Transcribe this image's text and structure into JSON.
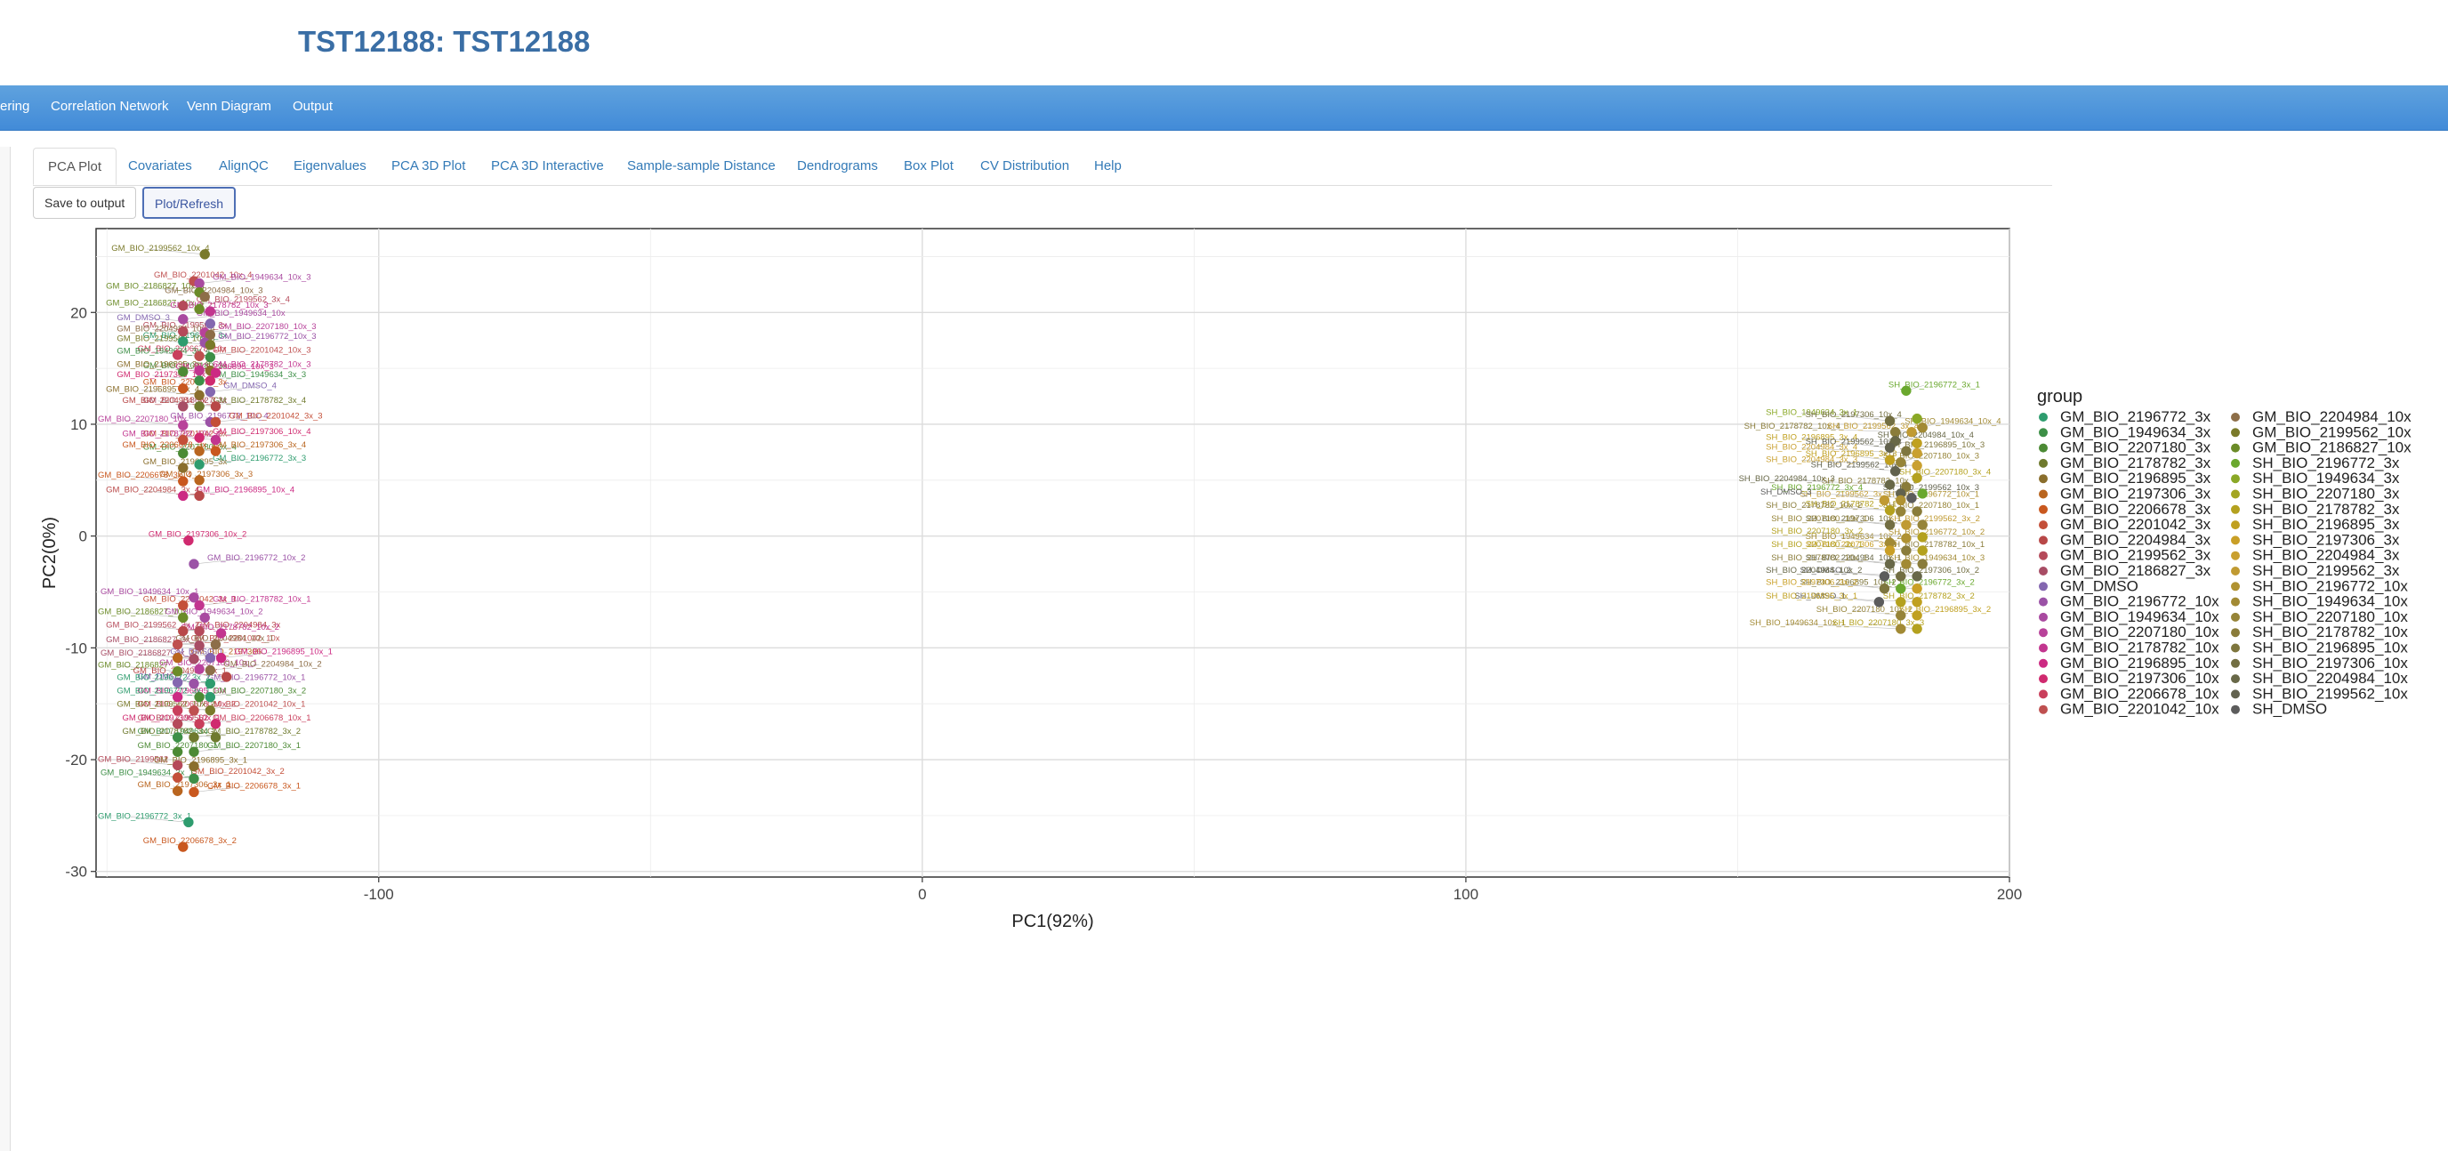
{
  "app": {
    "title": "TST12188: TST12188"
  },
  "nav": {
    "items": [
      "ering",
      "Correlation Network",
      "Venn Diagram",
      "Output"
    ]
  },
  "tabs": [
    "PCA Plot",
    "Covariates",
    "AlignQC",
    "Eigenvalues",
    "PCA 3D Plot",
    "PCA 3D Interactive",
    "Sample-sample Distance",
    "Dendrograms",
    "Box Plot",
    "CV Distribution",
    "Help"
  ],
  "buttons": {
    "save": "Save to output",
    "plot": "Plot/Refresh"
  },
  "chart_data": {
    "type": "scatter",
    "xlabel": "PC1(92%)",
    "ylabel": "PC2(0%)",
    "xlim": [
      -152,
      200
    ],
    "ylim": [
      -30.5,
      27.5
    ],
    "xticks": [
      -100,
      0,
      100,
      200
    ],
    "yticks": [
      -30,
      -20,
      -10,
      0,
      10,
      20
    ],
    "grid": true,
    "legend": {
      "title": "group",
      "placement": "right"
    },
    "groups": [
      {
        "name": "GM_BIO_2196772_3x",
        "color": "#2e9c6e"
      },
      {
        "name": "GM_BIO_1949634_3x",
        "color": "#3d8f47"
      },
      {
        "name": "GM_BIO_2207180_3x",
        "color": "#4c8a35"
      },
      {
        "name": "GM_BIO_2178782_3x",
        "color": "#6f7a2e"
      },
      {
        "name": "GM_BIO_2196895_3x",
        "color": "#8a6e2c"
      },
      {
        "name": "GM_BIO_2197306_3x",
        "color": "#b9651f"
      },
      {
        "name": "GM_BIO_2206678_3x",
        "color": "#c9581f"
      },
      {
        "name": "GM_BIO_2201042_3x",
        "color": "#c44f39"
      },
      {
        "name": "GM_BIO_2204984_3x",
        "color": "#b84848"
      },
      {
        "name": "GM_BIO_2199562_3x",
        "color": "#b54a5a"
      },
      {
        "name": "GM_BIO_2186827_3x",
        "color": "#a84d65"
      },
      {
        "name": "GM_DMSO",
        "color": "#8467b0"
      },
      {
        "name": "GM_BIO_2196772_10x",
        "color": "#9b52a6"
      },
      {
        "name": "GM_BIO_1949634_10x",
        "color": "#a94aa0"
      },
      {
        "name": "GM_BIO_2207180_10x",
        "color": "#b8429a"
      },
      {
        "name": "GM_BIO_2178782_10x",
        "color": "#c2368f"
      },
      {
        "name": "GM_BIO_2196895_10x",
        "color": "#cc2a83"
      },
      {
        "name": "GM_BIO_2197306_10x",
        "color": "#d02a6f"
      },
      {
        "name": "GM_BIO_2206678_10x",
        "color": "#c93f5c"
      },
      {
        "name": "GM_BIO_2201042_10x",
        "color": "#bf5050"
      },
      {
        "name": "GM_BIO_2204984_10x",
        "color": "#8d6e48"
      },
      {
        "name": "GM_BIO_2199562_10x",
        "color": "#7a7a2a"
      },
      {
        "name": "GM_BIO_2186827_10x",
        "color": "#6b8b28"
      },
      {
        "name": "SH_BIO_2196772_3x",
        "color": "#6aa82e"
      },
      {
        "name": "SH_BIO_1949634_3x",
        "color": "#8aa826"
      },
      {
        "name": "SH_BIO_2207180_3x",
        "color": "#a3a522"
      },
      {
        "name": "SH_BIO_2178782_3x",
        "color": "#b4a11f"
      },
      {
        "name": "SH_BIO_2196895_3x",
        "color": "#c0a020"
      },
      {
        "name": "SH_BIO_2197306_3x",
        "color": "#c99f26"
      },
      {
        "name": "SH_BIO_2204984_3x",
        "color": "#c9a030"
      },
      {
        "name": "SH_BIO_2199562_3x",
        "color": "#c09a32"
      },
      {
        "name": "SH_BIO_2196772_10x",
        "color": "#b09232"
      },
      {
        "name": "SH_BIO_1949634_10x",
        "color": "#a28a34"
      },
      {
        "name": "SH_BIO_2207180_10x",
        "color": "#968438"
      },
      {
        "name": "SH_BIO_2178782_10x",
        "color": "#8a7c3a"
      },
      {
        "name": "SH_BIO_2196895_10x",
        "color": "#7e763e"
      },
      {
        "name": "SH_BIO_2197306_10x",
        "color": "#726e42"
      },
      {
        "name": "SH_BIO_2204984_10x",
        "color": "#686848"
      },
      {
        "name": "SH_BIO_2199562_10x",
        "color": "#62624e"
      },
      {
        "name": "SH_DMSO",
        "color": "#5c5c5c"
      }
    ],
    "points": [
      {
        "label": "GM_BIO_2199562_10x_4",
        "x": -132,
        "y": 25.2,
        "g": 21
      },
      {
        "label": "GM_BIO_2201042_10x_4",
        "x": -134,
        "y": 22.8,
        "g": 19
      },
      {
        "label": "GM_BIO_1949634_10x_3",
        "x": -133,
        "y": 22.6,
        "g": 13
      },
      {
        "label": "GM_BIO_2186827_10x_3",
        "x": -133,
        "y": 21.8,
        "g": 22
      },
      {
        "label": "GM_BIO_2204984_10x_3",
        "x": -132,
        "y": 21.4,
        "g": 20
      },
      {
        "label": "GM_BIO_2199562_3x_4",
        "x": -136,
        "y": 20.6,
        "g": 9
      },
      {
        "label": "GM_BIO_2186827_10x_4",
        "x": -133,
        "y": 20.3,
        "g": 22
      },
      {
        "label": "GM_BIO_2178782_10x_3",
        "x": -131,
        "y": 20.1,
        "g": 15
      },
      {
        "label": "GM_BIO_1949634_10x",
        "x": -136,
        "y": 19.4,
        "g": 13
      },
      {
        "label": "GM_DMSO_3",
        "x": -131,
        "y": 19.0,
        "g": 11
      },
      {
        "label": "GM_BIO_2199562_3x",
        "x": -136,
        "y": 18.3,
        "g": 9
      },
      {
        "label": "GM_BIO_2207180_10x_3",
        "x": -132,
        "y": 18.2,
        "g": 14
      },
      {
        "label": "GM_BIO_2204984_10x_4",
        "x": -131,
        "y": 18.0,
        "g": 20
      },
      {
        "label": "GM_BIO_2196772_3x",
        "x": -136,
        "y": 17.4,
        "g": 0
      },
      {
        "label": "GM_BIO_2196772_10x_3",
        "x": -132,
        "y": 17.3,
        "g": 12
      },
      {
        "label": "GM_BIO_2199562_10x_3",
        "x": -131,
        "y": 17.1,
        "g": 21
      },
      {
        "label": "GM_BIO_2206678_10x",
        "x": -137,
        "y": 16.2,
        "g": 18
      },
      {
        "label": "GM_BIO_2201042_10x_3",
        "x": -133,
        "y": 16.1,
        "g": 19
      },
      {
        "label": "GM_BIO_1949634_3x_4",
        "x": -131,
        "y": 16.0,
        "g": 1
      },
      {
        "label": "GM_BIO_2207180_3x",
        "x": -136,
        "y": 14.7,
        "g": 2
      },
      {
        "label": "GM_BIO_2178782_10x_3b",
        "x": -133,
        "y": 14.8,
        "g": 15
      },
      {
        "label": "GM_BIO_2196895_3x_3",
        "x": -131,
        "y": 14.8,
        "g": 4
      },
      {
        "label": "GM_BIO_2196895_10x_3",
        "x": -130,
        "y": 14.6,
        "g": 16
      },
      {
        "label": "GM_BIO_1949634_3x_3",
        "x": -133,
        "y": 13.9,
        "g": 1
      },
      {
        "label": "GM_BIO_2197306_10x_3",
        "x": -131,
        "y": 13.9,
        "g": 17
      },
      {
        "label": "GM_BIO_2206678_3x",
        "x": -136,
        "y": 13.2,
        "g": 6
      },
      {
        "label": "GM_DMSO_4",
        "x": -131,
        "y": 12.9,
        "g": 11
      },
      {
        "label": "GM_BIO_2196895_3x_4",
        "x": -133,
        "y": 12.6,
        "g": 4
      },
      {
        "label": "GM_BIO_2186827_3x",
        "x": -136,
        "y": 11.6,
        "g": 10
      },
      {
        "label": "GM_BIO_2178782_3x_4",
        "x": -133,
        "y": 11.6,
        "g": 3
      },
      {
        "label": "GM_BIO_2204984_3x_3",
        "x": -130,
        "y": 11.6,
        "g": 8
      },
      {
        "label": "GM_BIO_2196772_10x_4",
        "x": -131,
        "y": 10.2,
        "g": 12
      },
      {
        "label": "GM_BIO_2201042_3x_3",
        "x": -130,
        "y": 10.2,
        "g": 7
      },
      {
        "label": "GM_BIO_2207180_10x",
        "x": -136,
        "y": 9.9,
        "g": 14
      },
      {
        "label": "GM_BIO_2201042_3x",
        "x": -136,
        "y": 8.6,
        "g": 7
      },
      {
        "label": "GM_BIO_2197306_10x_4",
        "x": -133,
        "y": 8.8,
        "g": 17
      },
      {
        "label": "GM_BIO_2178782_10x_4",
        "x": -130,
        "y": 8.6,
        "g": 15
      },
      {
        "label": "GM_BIO_2207180_3x_4",
        "x": -136,
        "y": 7.4,
        "g": 2
      },
      {
        "label": "GM_BIO_2197306_3x_4",
        "x": -133,
        "y": 7.6,
        "g": 5
      },
      {
        "label": "GM_BIO_2206678_3x_3",
        "x": -130,
        "y": 7.6,
        "g": 6
      },
      {
        "label": "GM_BIO_2196895_3x",
        "x": -136,
        "y": 6.1,
        "g": 4
      },
      {
        "label": "GM_BIO_2196772_3x_3",
        "x": -133,
        "y": 6.4,
        "g": 0
      },
      {
        "label": "GM_BIO_2206678_3x_4",
        "x": -136,
        "y": 4.9,
        "g": 6
      },
      {
        "label": "GM_BIO_2197306_3x_3",
        "x": -133,
        "y": 5.0,
        "g": 5
      },
      {
        "label": "GM_BIO_2196895_10x_4",
        "x": -136,
        "y": 3.6,
        "g": 16
      },
      {
        "label": "GM_BIO_2204984_3x_4",
        "x": -133,
        "y": 3.6,
        "g": 8
      },
      {
        "label": "GM_BIO_2197306_10x_2",
        "x": -135,
        "y": -0.4,
        "g": 17
      },
      {
        "label": "GM_BIO_2196772_10x_2",
        "x": -134,
        "y": -2.5,
        "g": 12
      },
      {
        "label": "GM_BIO_1949634_10x_1",
        "x": -134,
        "y": -5.5,
        "g": 13
      },
      {
        "label": "GM_BIO_2201042_3x_1",
        "x": -136,
        "y": -6.2,
        "g": 7
      },
      {
        "label": "GM_BIO_2178782_10x_1",
        "x": -133,
        "y": -6.2,
        "g": 15
      },
      {
        "label": "GM_BIO_2186827_10x",
        "x": -136,
        "y": -7.3,
        "g": 22
      },
      {
        "label": "GM_BIO_1949634_10x_2",
        "x": -132,
        "y": -7.3,
        "g": 13
      },
      {
        "label": "GM_BIO_2204984_3x",
        "x": -136,
        "y": -8.5,
        "g": 8
      },
      {
        "label": "GM_BIO_2199562_3x_2",
        "x": -133,
        "y": -8.5,
        "g": 9
      },
      {
        "label": "GM_BIO_2178782_10x_2",
        "x": -129,
        "y": -8.7,
        "g": 15
      },
      {
        "label": "GM_BIO_2201042_10x",
        "x": -137,
        "y": -9.7,
        "g": 19
      },
      {
        "label": "GM_BIO_2186827_3x_1",
        "x": -133,
        "y": -9.8,
        "g": 10
      },
      {
        "label": "GM_BIO_2204984_10x_1",
        "x": -130,
        "y": -9.7,
        "g": 20
      },
      {
        "label": "GM_BIO_2197306",
        "x": -137,
        "y": -10.9,
        "g": 5
      },
      {
        "label": "GM_BIO_2186827_3x_2",
        "x": -134,
        "y": -11.0,
        "g": 10
      },
      {
        "label": "GM_DMSO_1",
        "x": -131,
        "y": -10.9,
        "g": 11
      },
      {
        "label": "GM_BIO_2196895_10x_1",
        "x": -129,
        "y": -10.9,
        "g": 16
      },
      {
        "label": "GM_BIO_2186827",
        "x": -137,
        "y": -12.1,
        "g": 22
      },
      {
        "label": "GM_BIO_2207180_10x_1",
        "x": -133,
        "y": -11.9,
        "g": 14
      },
      {
        "label": "GM_BIO_2204984_10x_2",
        "x": -131,
        "y": -12.0,
        "g": 20
      },
      {
        "label": "GM_BIO_2204984_3x_1",
        "x": -128,
        "y": -12.6,
        "g": 8
      },
      {
        "label": "GM_DMSO_2",
        "x": -137,
        "y": -13.1,
        "g": 11
      },
      {
        "label": "GM_BIO_2196772_10x_1",
        "x": -134,
        "y": -13.2,
        "g": 12
      },
      {
        "label": "GM_BIO_2196772_3x_2",
        "x": -131,
        "y": -13.2,
        "g": 0
      },
      {
        "label": "GM_BIO_2196895_10x",
        "x": -137,
        "y": -14.4,
        "g": 16
      },
      {
        "label": "GM_BIO_2207180_3x_2",
        "x": -133,
        "y": -14.4,
        "g": 2
      },
      {
        "label": "GM_BIO_2196772_3x_1",
        "x": -131,
        "y": -14.4,
        "g": 0
      },
      {
        "label": "GM_BIO_2206678_10x_2",
        "x": -137,
        "y": -15.6,
        "g": 18
      },
      {
        "label": "GM_BIO_2201042_10x_1",
        "x": -134,
        "y": -15.6,
        "g": 19
      },
      {
        "label": "GM_BIO_2199562_10x_2",
        "x": -131,
        "y": -15.6,
        "g": 21
      },
      {
        "label": "GM_BIO_2199562_1",
        "x": -137,
        "y": -16.8,
        "g": 9
      },
      {
        "label": "GM_BIO_2206678_10x_1",
        "x": -133,
        "y": -16.8,
        "g": 18
      },
      {
        "label": "GM_BIO_2197306_10x_1",
        "x": -130,
        "y": -16.8,
        "g": 17
      },
      {
        "label": "GM_BIO_1949634",
        "x": -137,
        "y": -18.0,
        "g": 1
      },
      {
        "label": "GM_BIO_2178782_3x_2",
        "x": -134,
        "y": -18.0,
        "g": 3
      },
      {
        "label": "GM_BIO_2178782_3x_1",
        "x": -130,
        "y": -18.0,
        "g": 3
      },
      {
        "label": "GM_BIO_2207180_1",
        "x": -137,
        "y": -19.3,
        "g": 2
      },
      {
        "label": "GM_BIO_2207180_3x_1",
        "x": -134,
        "y": -19.3,
        "g": 2
      },
      {
        "label": "GM_BIO_2199562",
        "x": -137,
        "y": -20.5,
        "g": 9
      },
      {
        "label": "GM_BIO_2196895_3x_1",
        "x": -134,
        "y": -20.6,
        "g": 4
      },
      {
        "label": "GM_BIO_2201042_3x_2",
        "x": -137,
        "y": -21.6,
        "g": 7
      },
      {
        "label": "GM_BIO_1949634_3x_1",
        "x": -134,
        "y": -21.7,
        "g": 1
      },
      {
        "label": "GM_BIO_2197306_3x_1",
        "x": -137,
        "y": -22.8,
        "g": 5
      },
      {
        "label": "GM_BIO_2206678_3x_1",
        "x": -134,
        "y": -22.9,
        "g": 6
      },
      {
        "label": "GM_BIO_2196772_3x_1b",
        "x": -135,
        "y": -25.6,
        "g": 0
      },
      {
        "label": "GM_BIO_2206678_3x_2",
        "x": -136,
        "y": -27.8,
        "g": 6
      },
      {
        "label": "SH_BIO_2196772_3x_1",
        "x": 181,
        "y": 13.0,
        "g": 23
      },
      {
        "label": "SH_BIO_1949634_3x_1",
        "x": 183,
        "y": 10.5,
        "g": 24
      },
      {
        "label": "SH_BIO_2197306_10x_4",
        "x": 178,
        "y": 10.3,
        "g": 36
      },
      {
        "label": "SH_BIO_1949634_10x_4",
        "x": 184,
        "y": 9.7,
        "g": 32
      },
      {
        "label": "SH_BIO_2178782_10x_4",
        "x": 179,
        "y": 9.3,
        "g": 34
      },
      {
        "label": "SH_BIO_2199562_3x_4",
        "x": 182,
        "y": 9.3,
        "g": 30
      },
      {
        "label": "SH_BIO_2204984_10x_4",
        "x": 179,
        "y": 8.5,
        "g": 37
      },
      {
        "label": "SH_BIO_2196895_3x_4",
        "x": 183,
        "y": 8.3,
        "g": 27
      },
      {
        "label": "SH_BIO_2199562_10x_3",
        "x": 178,
        "y": 7.9,
        "g": 38
      },
      {
        "label": "SH_BIO_2196895_10x_3",
        "x": 181,
        "y": 7.6,
        "g": 35
      },
      {
        "label": "SH_BIO_2204984_3x_4",
        "x": 183,
        "y": 7.4,
        "g": 29
      },
      {
        "label": "SH_BIO_2196895_3x_3",
        "x": 178,
        "y": 6.8,
        "g": 27
      },
      {
        "label": "SH_BIO_2207180_10x_3",
        "x": 180,
        "y": 6.6,
        "g": 33
      },
      {
        "label": "SH_BIO_2204984_3x_3",
        "x": 183,
        "y": 6.3,
        "g": 29
      },
      {
        "label": "SH_BIO_2199562_10x_4",
        "x": 179,
        "y": 5.8,
        "g": 38
      },
      {
        "label": "SH_BIO_2207180_3x_4",
        "x": 183,
        "y": 5.2,
        "g": 26
      },
      {
        "label": "SH_BIO_2204984_10x_3",
        "x": 178,
        "y": 4.6,
        "g": 37
      },
      {
        "label": "SH_BIO_2178782_10x_3",
        "x": 181,
        "y": 4.4,
        "g": 34
      },
      {
        "label": "SH_BIO_2199562_10x_3b",
        "x": 180,
        "y": 3.8,
        "g": 38
      },
      {
        "label": "SH_BIO_2196772_3x_4",
        "x": 184,
        "y": 3.8,
        "g": 23
      },
      {
        "label": "SH_BIO_2199562_3x_1",
        "x": 177,
        "y": 3.2,
        "g": 30
      },
      {
        "label": "SH_BIO_2196772_10x_1",
        "x": 180,
        "y": 3.2,
        "g": 31
      },
      {
        "label": "SH_DMSO_3",
        "x": 182,
        "y": 3.4,
        "g": 39
      },
      {
        "label": "SH_BIO_2178782_3x_1",
        "x": 178,
        "y": 2.3,
        "g": 26
      },
      {
        "label": "SH_BIO_2207180_10x_1",
        "x": 180,
        "y": 2.2,
        "g": 33
      },
      {
        "label": "SH_BIO_2178782_10x_2",
        "x": 183,
        "y": 2.2,
        "g": 34
      },
      {
        "label": "SH_BIO_2197306_10x_1",
        "x": 178,
        "y": 1.0,
        "g": 36
      },
      {
        "label": "SH_BIO_2199562_3x_2",
        "x": 181,
        "y": 1.0,
        "g": 30
      },
      {
        "label": "SH_BIO_2207180_10x_1b",
        "x": 184,
        "y": 1.0,
        "g": 33
      },
      {
        "label": "SH_BIO_1949634_10x_2",
        "x": 178,
        "y": -0.6,
        "g": 32
      },
      {
        "label": "SH_BIO_2196772_10x_2",
        "x": 181,
        "y": -0.2,
        "g": 31
      },
      {
        "label": "SH_BIO_2207180_3x_2",
        "x": 184,
        "y": -0.1,
        "g": 26
      },
      {
        "label": "SH_BIO_2207306_3x_3",
        "x": 178,
        "y": -1.3,
        "g": 28
      },
      {
        "label": "SH_BIO_2178782_10x_1",
        "x": 181,
        "y": -1.3,
        "g": 34
      },
      {
        "label": "SH_BIO_2207180_3x_1",
        "x": 184,
        "y": -1.3,
        "g": 26
      },
      {
        "label": "SH_BIO_2204984_10x_1",
        "x": 178,
        "y": -2.5,
        "g": 37
      },
      {
        "label": "SH_BIO_1949634_10x_3",
        "x": 181,
        "y": -2.5,
        "g": 32
      },
      {
        "label": "SH_BIO_2178782_10x_1b",
        "x": 184,
        "y": -2.5,
        "g": 34
      },
      {
        "label": "SH_DMSO_2",
        "x": 177,
        "y": -3.6,
        "g": 39
      },
      {
        "label": "SH_BIO_2197306_10x_2",
        "x": 180,
        "y": -3.6,
        "g": 36
      },
      {
        "label": "SH_BIO_2204984_10x_2",
        "x": 183,
        "y": -3.6,
        "g": 37
      },
      {
        "label": "SH_BIO_2196895_10x_2",
        "x": 177,
        "y": -4.7,
        "g": 35
      },
      {
        "label": "SH_BIO_2196772_3x_2",
        "x": 180,
        "y": -4.7,
        "g": 23
      },
      {
        "label": "SH_BIO_2197306_3x_2",
        "x": 183,
        "y": -4.7,
        "g": 28
      },
      {
        "label": "SH_DMSO_1",
        "x": 176,
        "y": -5.9,
        "g": 39
      },
      {
        "label": "SH_BIO_2178782_3x_2",
        "x": 180,
        "y": -5.9,
        "g": 26
      },
      {
        "label": "SH_BIO_2196895_3x_1",
        "x": 183,
        "y": -5.9,
        "g": 27
      },
      {
        "label": "SH_BIO_2207180_10x_2",
        "x": 180,
        "y": -7.1,
        "g": 33
      },
      {
        "label": "SH_BIO_2196895_3x_2",
        "x": 183,
        "y": -7.1,
        "g": 27
      },
      {
        "label": "SH_BIO_1949634_10x_1",
        "x": 180,
        "y": -8.3,
        "g": 32
      },
      {
        "label": "SH_BIO_2207180_3x_3",
        "x": 183,
        "y": -8.3,
        "g": 26
      }
    ]
  }
}
